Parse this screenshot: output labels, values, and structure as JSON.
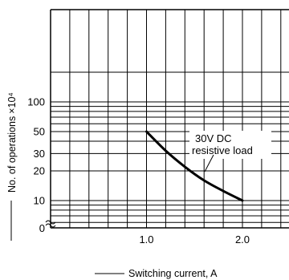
{
  "chart_data": {
    "type": "line",
    "xlabel": "Switching current, A",
    "ylabel": "No. of operations",
    "ylabel_unit": "×10⁴",
    "y_scale": "log",
    "x_range": [
      0,
      2.5
    ],
    "y_range": [
      5,
      200
    ],
    "x_ticks": [
      {
        "value": 1.0,
        "label": "1.0"
      },
      {
        "value": 2.0,
        "label": "2.0"
      }
    ],
    "y_ticks": [
      {
        "value": 100,
        "label": "100"
      },
      {
        "value": 50,
        "label": "50"
      },
      {
        "value": 30,
        "label": "30"
      },
      {
        "value": 20,
        "label": "20"
      },
      {
        "value": 10,
        "label": "10"
      }
    ],
    "y_origin_label": "0",
    "grid": true,
    "series": [
      {
        "name": "30V DC resistive load",
        "x": [
          1.0,
          1.2,
          1.4,
          1.6,
          1.8,
          2.0
        ],
        "y": [
          50,
          32,
          22,
          16,
          12.5,
          10
        ]
      }
    ],
    "annotation": {
      "text": [
        "30V DC",
        "resistive load"
      ]
    }
  }
}
